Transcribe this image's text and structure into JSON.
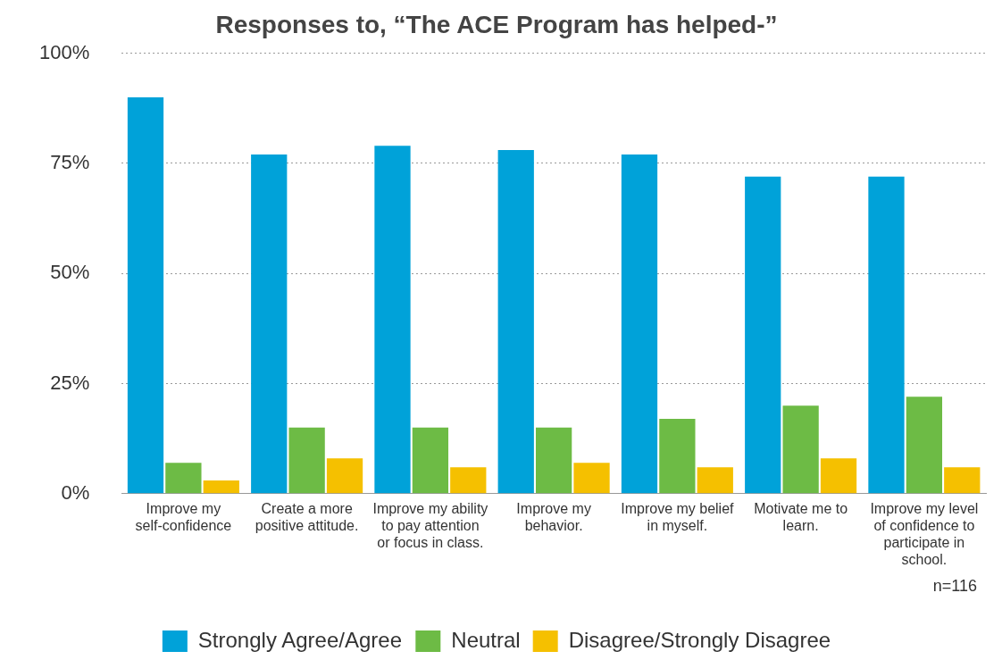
{
  "chart_data": {
    "type": "bar",
    "title": "Responses to, “The ACE Program has helped-”",
    "categories": [
      "Improve my self-confidence",
      "Create a more positive attitude.",
      "Improve my ability to pay attention or focus in class.",
      "Improve my behavior.",
      "Improve my belief in myself.",
      "Motivate me to learn.",
      "Improve my level of confidence to participate in school."
    ],
    "series": [
      {
        "name": "Strongly Agree/Agree",
        "color": "#00a2d9",
        "values": [
          90,
          77,
          79,
          78,
          77,
          72,
          72
        ]
      },
      {
        "name": "Neutral",
        "color": "#6dbb45",
        "values": [
          7,
          15,
          15,
          15,
          17,
          20,
          22
        ]
      },
      {
        "name": "Disagree/Strongly Disagree",
        "color": "#f5c000",
        "values": [
          3,
          8,
          6,
          7,
          6,
          8,
          6
        ]
      }
    ],
    "ylim": [
      0,
      100
    ],
    "yticks": [
      {
        "value": 0,
        "label": "0%"
      },
      {
        "value": 25,
        "label": "25%"
      },
      {
        "value": 50,
        "label": "50%"
      },
      {
        "value": 75,
        "label": "75%"
      },
      {
        "value": 100,
        "label": "100%"
      }
    ],
    "grid": "y",
    "legend": "bottom",
    "annotations": [
      "n=116"
    ]
  }
}
